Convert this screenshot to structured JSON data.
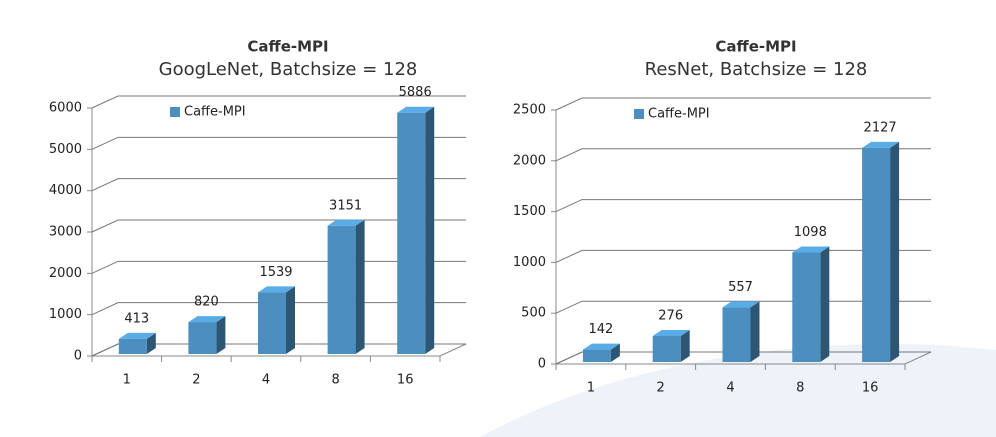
{
  "chart_data": [
    {
      "type": "bar3d",
      "title": "Caffe-MPI",
      "subtitle": "GoogLeNet, Batchsize = 128",
      "categories": [
        "1",
        "2",
        "4",
        "8",
        "16"
      ],
      "series": [
        {
          "name": "Caffe-MPI",
          "color": "#4a8fc0",
          "values": [
            413,
            820,
            1539,
            3151,
            5886
          ]
        }
      ],
      "ylim": [
        0,
        6000
      ],
      "yticks": [
        0,
        1000,
        2000,
        3000,
        4000,
        5000,
        6000
      ],
      "grid": true,
      "legend": "top-left"
    },
    {
      "type": "bar3d",
      "title": "Caffe-MPI",
      "subtitle": "ResNet, Batchsize = 128",
      "categories": [
        "1",
        "2",
        "4",
        "8",
        "16"
      ],
      "series": [
        {
          "name": "Caffe-MPI",
          "color": "#4a8fc0",
          "values": [
            142,
            276,
            557,
            1098,
            2127
          ]
        }
      ],
      "ylim": [
        0,
        2500
      ],
      "yticks": [
        0,
        500,
        1000,
        1500,
        2000,
        2500
      ],
      "grid": true,
      "legend": "top-left"
    }
  ]
}
